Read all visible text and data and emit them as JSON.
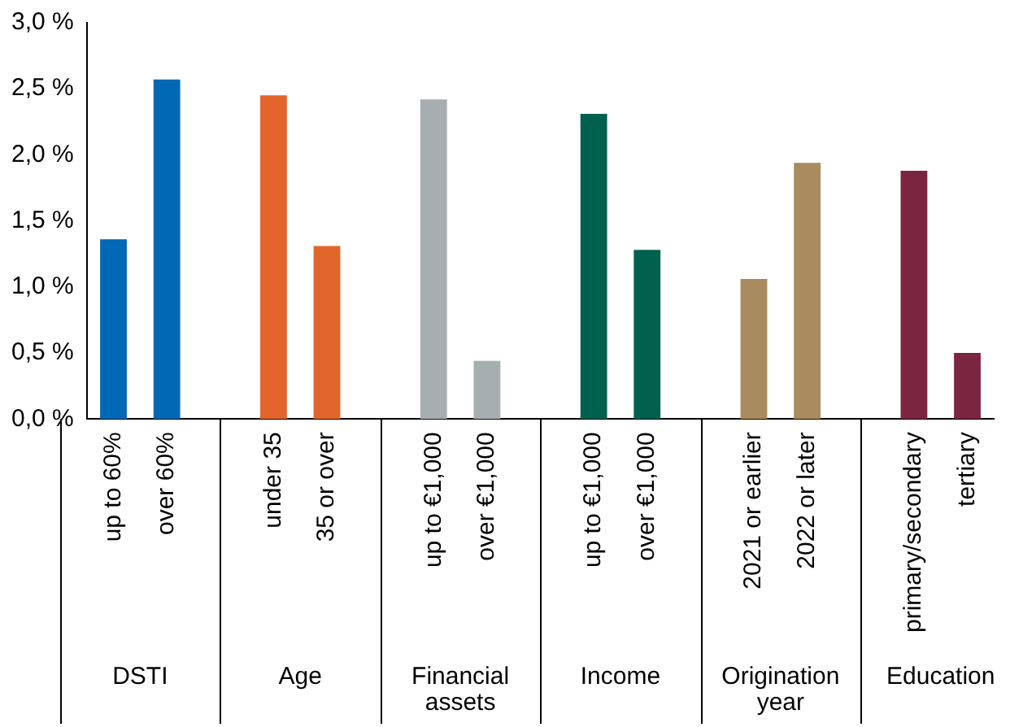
{
  "chart_data": {
    "type": "bar",
    "categories": [
      "up to 60%",
      "over 60%",
      null,
      "under 35",
      "35 or over",
      null,
      "up to €1,000",
      "over €1,000",
      null,
      "up to €1,000",
      "over €1,000",
      null,
      "2021 or earlier",
      "2022 or later",
      null,
      "primary/secondary",
      "tertiary"
    ],
    "values": [
      1.36,
      2.57,
      null,
      2.45,
      1.31,
      null,
      2.42,
      0.44,
      null,
      2.31,
      1.28,
      null,
      1.06,
      1.94,
      null,
      1.88,
      0.5
    ],
    "colors": [
      "#0068b4",
      "#0068b4",
      null,
      "#e2652c",
      "#e2652c",
      null,
      "#a7aeb1",
      "#a7aeb1",
      null,
      "#00604e",
      "#00604e",
      null,
      "#a98b5f",
      "#a98b5f",
      null,
      "#7b2541",
      "#7b2541"
    ],
    "ylim": [
      0,
      3
    ],
    "yticks": [
      {
        "value": 0,
        "label": "0,0 %"
      },
      {
        "value": 0.5,
        "label": "0,5 %"
      },
      {
        "value": 1,
        "label": "1,0 %"
      },
      {
        "value": 1.5,
        "label": "1,5 %"
      },
      {
        "value": 2,
        "label": "2,0 %"
      },
      {
        "value": 2.5,
        "label": "2,5 %"
      },
      {
        "value": 3,
        "label": "3,0 %"
      }
    ],
    "annotations": [
      "DSTI",
      "Age",
      "Financial assets",
      "Income",
      "Origination year",
      "Education"
    ],
    "grid": false,
    "legend": false
  }
}
